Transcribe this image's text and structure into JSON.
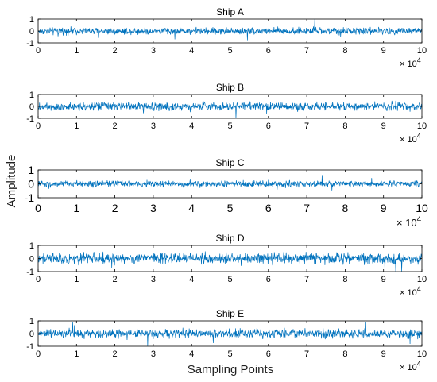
{
  "chart_data": [
    {
      "type": "line",
      "title": "Ship A",
      "xlim": [
        0,
        10
      ],
      "ylim": [
        -1,
        1
      ],
      "xticks": [
        "0",
        "1",
        "2",
        "3",
        "4",
        "5",
        "6",
        "7",
        "8",
        "9",
        "10"
      ],
      "yticks": [
        "1",
        "0",
        "-1"
      ],
      "x_multiplier_base": "× 10",
      "x_multiplier_exp": "4",
      "series": [
        {
          "color": "#0072BD",
          "signal_amplitude_approx": 0.25
        }
      ]
    },
    {
      "type": "line",
      "title": "Ship B",
      "xlim": [
        0,
        10
      ],
      "ylim": [
        -1,
        1
      ],
      "xticks": [
        "0",
        "1",
        "2",
        "3",
        "4",
        "5",
        "6",
        "7",
        "8",
        "9",
        "10"
      ],
      "yticks": [
        "1",
        "0",
        "-1"
      ],
      "x_multiplier_base": "× 10",
      "x_multiplier_exp": "4",
      "series": [
        {
          "color": "#0072BD",
          "signal_amplitude_approx": 0.3
        }
      ]
    },
    {
      "type": "line",
      "title": "Ship C",
      "xlim": [
        0,
        10
      ],
      "ylim": [
        -1,
        1
      ],
      "xticks": [
        "0",
        "1",
        "2",
        "3",
        "4",
        "5",
        "6",
        "7",
        "8",
        "9",
        "10"
      ],
      "yticks": [
        "1",
        "0",
        "-1"
      ],
      "x_multiplier_base": "× 10",
      "x_multiplier_exp": "4",
      "series": [
        {
          "color": "#0072BD",
          "signal_amplitude_approx": 0.2
        }
      ]
    },
    {
      "type": "line",
      "title": "Ship D",
      "xlim": [
        0,
        10
      ],
      "ylim": [
        -1,
        1
      ],
      "xticks": [
        "0",
        "1",
        "2",
        "3",
        "4",
        "5",
        "6",
        "7",
        "8",
        "9",
        "10"
      ],
      "yticks": [
        "1",
        "0",
        "-1"
      ],
      "x_multiplier_base": "× 10",
      "x_multiplier_exp": "4",
      "series": [
        {
          "color": "#0072BD",
          "signal_amplitude_approx": 0.35
        }
      ]
    },
    {
      "type": "line",
      "title": "Ship E",
      "xlim": [
        0,
        10
      ],
      "ylim": [
        -1,
        1
      ],
      "xticks": [
        "0",
        "1",
        "2",
        "3",
        "4",
        "5",
        "6",
        "7",
        "8",
        "9",
        "10"
      ],
      "yticks": [
        "1",
        "0",
        "-1"
      ],
      "x_multiplier_base": "× 10",
      "x_multiplier_exp": "4",
      "series": [
        {
          "color": "#0072BD",
          "signal_amplitude_approx": 0.3
        }
      ]
    }
  ],
  "figure": {
    "ylabel": "Amplitude",
    "xlabel": "Sampling Points"
  }
}
